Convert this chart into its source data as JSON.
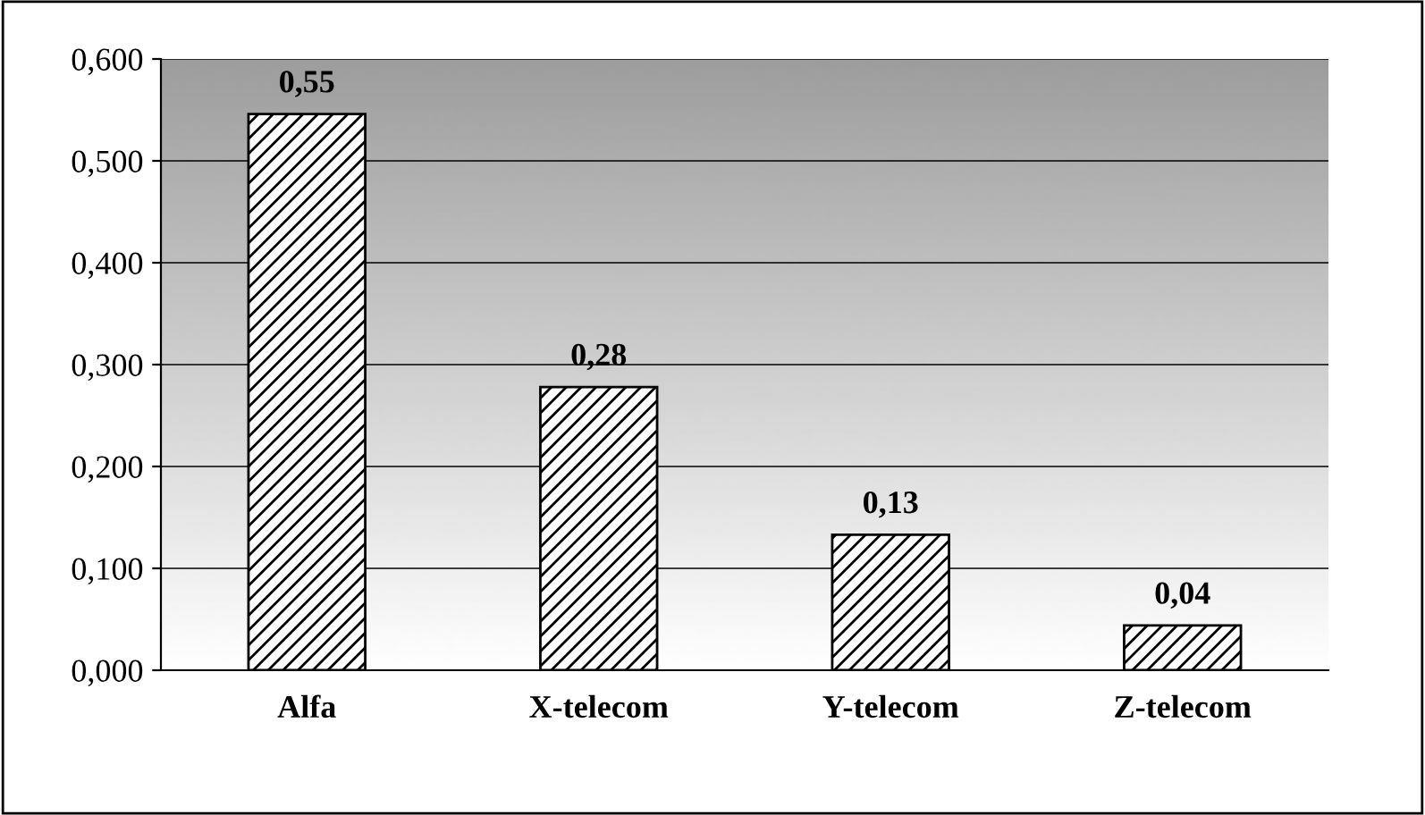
{
  "chart_data": {
    "type": "bar",
    "categories": [
      "Alfa",
      "X-telecom",
      "Y-telecom",
      "Z-telecom"
    ],
    "values": [
      0.546,
      0.278,
      0.133,
      0.044
    ],
    "value_labels": [
      "0,55",
      "0,28",
      "0,13",
      "0,04"
    ],
    "ylim": [
      0,
      0.6
    ],
    "yticks": [
      {
        "value": 0,
        "label": "0,000"
      },
      {
        "value": 0.1,
        "label": "0,100"
      },
      {
        "value": 0.2,
        "label": "0,200"
      },
      {
        "value": 0.3,
        "label": "0,300"
      },
      {
        "value": 0.4,
        "label": "0,400"
      },
      {
        "value": 0.5,
        "label": "0,500"
      },
      {
        "value": 0.6,
        "label": "0,600"
      }
    ],
    "grid": "y",
    "legend": false
  }
}
